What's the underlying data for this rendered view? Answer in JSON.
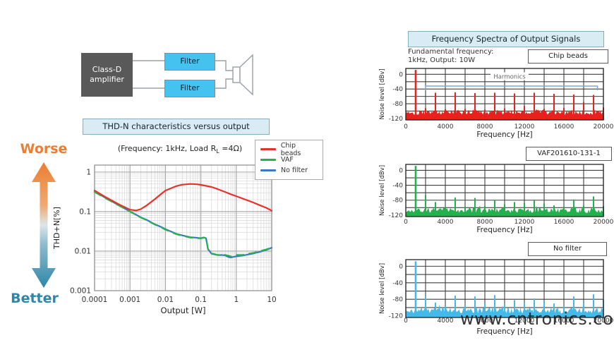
{
  "watermark": "www.cntronics.com",
  "diagram": {
    "amp_label": "Class-D\namplifier",
    "filter1_label": "Filter",
    "filter2_label": "Filter",
    "colors": {
      "amp_bg": "#595959",
      "filter_bg": "#45c2ee",
      "speaker_outline": "#9aa0a6"
    }
  },
  "worse_better": {
    "worse": "Worse",
    "better": "Better",
    "worse_color": "#ed7d31",
    "better_color": "#2e86a8"
  },
  "thdn": {
    "title": "THD-N characteristics versus output",
    "subtitle_pre": "(Frequency: 1kHz, Load R",
    "subtitle_sub": "L",
    "subtitle_post": " =4Ω)"
  },
  "spectra": {
    "title": "Frequency Spectra of Output Signals",
    "note_line1": "Fundamental frequency:",
    "note_line2": "1kHz, Output: 10W"
  },
  "chart_data": [
    {
      "type": "line",
      "title": "THD-N characteristics versus output",
      "xlabel": "Output [W]",
      "ylabel": "THD+N[%]",
      "xscale": "log",
      "yscale": "log",
      "xlim": [
        0.0001,
        10
      ],
      "ylim": [
        0.001,
        1.5
      ],
      "x_ticks": [
        "0.0001",
        "0.001",
        "0.01",
        "0.1",
        "1",
        "10"
      ],
      "y_ticks": [
        "1",
        "0.1",
        "0.01",
        "0.001"
      ],
      "grid": true,
      "legend_position": "top-right",
      "series": [
        {
          "name": "No filter",
          "color": "#3b78c3",
          "dash": "none",
          "points": [
            [
              0.0001,
              0.32
            ],
            [
              0.0002,
              0.225
            ],
            [
              0.0005,
              0.142
            ],
            [
              0.001,
              0.101
            ],
            [
              0.002,
              0.072
            ],
            [
              0.003,
              0.061
            ],
            [
              0.005,
              0.048
            ],
            [
              0.008,
              0.04
            ],
            [
              0.01,
              0.036
            ],
            [
              0.02,
              0.0275
            ],
            [
              0.03,
              0.025
            ],
            [
              0.05,
              0.0225
            ],
            [
              0.07,
              0.022
            ],
            [
              0.1,
              0.0213
            ],
            [
              0.12,
              0.0222
            ],
            [
              0.14,
              0.0212
            ],
            [
              0.16,
              0.0112
            ],
            [
              0.2,
              0.0086
            ],
            [
              0.3,
              0.0079
            ],
            [
              0.4,
              0.008
            ],
            [
              0.5,
              0.0077
            ],
            [
              0.6,
              0.0071
            ],
            [
              0.7,
              0.0069
            ],
            [
              0.8,
              0.0071
            ],
            [
              1,
              0.0074
            ],
            [
              1.5,
              0.0077
            ],
            [
              2,
              0.0081
            ],
            [
              3,
              0.0087
            ],
            [
              5,
              0.0098
            ],
            [
              7,
              0.0107
            ],
            [
              10,
              0.0122
            ]
          ]
        },
        {
          "name": "VAF",
          "color": "#27b24e",
          "dash": "10 8",
          "points": [
            [
              0.0001,
              0.315
            ],
            [
              0.0002,
              0.22
            ],
            [
              0.0005,
              0.14
            ],
            [
              0.001,
              0.1
            ],
            [
              0.002,
              0.071
            ],
            [
              0.003,
              0.06
            ],
            [
              0.005,
              0.047
            ],
            [
              0.008,
              0.039
            ],
            [
              0.01,
              0.035
            ],
            [
              0.02,
              0.027
            ],
            [
              0.03,
              0.0245
            ],
            [
              0.05,
              0.022
            ],
            [
              0.07,
              0.0215
            ],
            [
              0.1,
              0.021
            ],
            [
              0.12,
              0.022
            ],
            [
              0.14,
              0.0215
            ],
            [
              0.16,
              0.011
            ],
            [
              0.2,
              0.0088
            ],
            [
              0.3,
              0.008
            ],
            [
              0.4,
              0.0082
            ],
            [
              0.5,
              0.008
            ],
            [
              0.6,
              0.0077
            ],
            [
              0.7,
              0.0073
            ],
            [
              0.8,
              0.0076
            ],
            [
              1,
              0.008
            ],
            [
              1.5,
              0.008
            ],
            [
              2,
              0.0085
            ],
            [
              3,
              0.009
            ],
            [
              5,
              0.0102
            ],
            [
              7,
              0.011
            ],
            [
              10,
              0.0125
            ]
          ]
        },
        {
          "name": "Chip beads",
          "color": "#e8312b",
          "dash": "none",
          "points": [
            [
              0.0001,
              0.34
            ],
            [
              0.0002,
              0.235
            ],
            [
              0.0005,
              0.15
            ],
            [
              0.001,
              0.112
            ],
            [
              0.0015,
              0.107
            ],
            [
              0.002,
              0.115
            ],
            [
              0.003,
              0.145
            ],
            [
              0.005,
              0.205
            ],
            [
              0.008,
              0.29
            ],
            [
              0.01,
              0.34
            ],
            [
              0.02,
              0.44
            ],
            [
              0.03,
              0.48
            ],
            [
              0.05,
              0.5
            ],
            [
              0.08,
              0.49
            ],
            [
              0.1,
              0.475
            ],
            [
              0.2,
              0.42
            ],
            [
              0.3,
              0.37
            ],
            [
              0.5,
              0.31
            ],
            [
              0.7,
              0.275
            ],
            [
              1,
              0.245
            ],
            [
              2,
              0.195
            ],
            [
              3,
              0.17
            ],
            [
              5,
              0.14
            ],
            [
              7,
              0.125
            ],
            [
              10,
              0.105
            ]
          ]
        }
      ],
      "legend_order": [
        "Chip beads",
        "VAF",
        "No filter"
      ]
    },
    {
      "type": "bar",
      "title": "Chip beads",
      "xlabel": "Frequency [Hz]",
      "ylabel": "Noise level [dBv]",
      "xlim": [
        0,
        20000
      ],
      "ylim": [
        -120,
        0
      ],
      "x_tick_step": 4000,
      "grid_x_step": 2000,
      "grid_y_step": 20,
      "y_ticks": [
        0,
        -40,
        -80,
        -120
      ],
      "color": "#e8211d",
      "noise_floor_dbv": -103,
      "fundamental_hz": 1000,
      "harmonics": [
        [
          1000,
          12
        ],
        [
          2000,
          -92
        ],
        [
          3000,
          -50
        ],
        [
          4000,
          -95
        ],
        [
          5000,
          -49
        ],
        [
          6000,
          -94
        ],
        [
          7000,
          -51
        ],
        [
          8000,
          -96
        ],
        [
          9000,
          -50
        ],
        [
          10000,
          -93
        ],
        [
          11000,
          -52
        ],
        [
          12000,
          -86
        ],
        [
          13000,
          -50
        ],
        [
          14000,
          -94
        ],
        [
          15000,
          -53
        ],
        [
          16000,
          -91
        ],
        [
          17000,
          -55
        ],
        [
          18000,
          -76
        ],
        [
          19000,
          -56
        ],
        [
          20000,
          -90
        ]
      ],
      "annotation": {
        "text": "Harmonics",
        "bracket_from_hz": 2000,
        "bracket_to_hz": 19400,
        "bracket_level_dbv": -32,
        "color": "#7ba7d7",
        "text_color": "#6a6a6a"
      }
    },
    {
      "type": "bar",
      "title": "VAF201610-131-1",
      "xlabel": "Frequency [Hz]",
      "ylabel": "Noise level [dBv]",
      "xlim": [
        0,
        20000
      ],
      "ylim": [
        -120,
        0
      ],
      "x_tick_step": 4000,
      "grid_x_step": 2000,
      "grid_y_step": 20,
      "y_ticks": [
        0,
        -40,
        -80,
        -120
      ],
      "color": "#22b14c",
      "noise_floor_dbv": -107,
      "fundamental_hz": 1000,
      "harmonics": [
        [
          1000,
          12
        ],
        [
          2000,
          -66
        ],
        [
          3000,
          -85
        ],
        [
          4000,
          -99
        ],
        [
          5000,
          -73
        ],
        [
          6000,
          -97
        ],
        [
          7000,
          -74
        ],
        [
          8000,
          -95
        ],
        [
          9000,
          -79
        ],
        [
          10000,
          -91
        ],
        [
          11000,
          -85
        ],
        [
          12000,
          -87
        ],
        [
          13000,
          -81
        ],
        [
          14000,
          -89
        ],
        [
          15000,
          -94
        ],
        [
          16000,
          -97
        ],
        [
          17000,
          -78
        ],
        [
          18000,
          -94
        ],
        [
          19000,
          -70
        ],
        [
          20000,
          -96
        ]
      ]
    },
    {
      "type": "bar",
      "title": "No filter",
      "xlabel": "Frequency [Hz]",
      "ylabel": "Noise level [dBv]",
      "xlim": [
        0,
        20000
      ],
      "ylim": [
        -120,
        0
      ],
      "x_tick_step": 4000,
      "grid_x_step": 2000,
      "grid_y_step": 20,
      "y_ticks": [
        0,
        -40,
        -80,
        -120
      ],
      "color": "#45b9e8",
      "noise_floor_dbv": -107,
      "fundamental_hz": 1000,
      "harmonics": [
        [
          1000,
          12
        ],
        [
          2000,
          -72
        ],
        [
          3000,
          -88
        ],
        [
          4000,
          -96
        ],
        [
          5000,
          -71
        ],
        [
          6000,
          -95
        ],
        [
          7000,
          -73
        ],
        [
          8000,
          -91
        ],
        [
          9000,
          -70
        ],
        [
          10000,
          -90
        ],
        [
          11000,
          -82
        ],
        [
          12000,
          -88
        ],
        [
          13000,
          -78
        ],
        [
          14000,
          -84
        ],
        [
          15000,
          -90
        ],
        [
          16000,
          -96
        ],
        [
          17000,
          -73
        ],
        [
          18000,
          -88
        ],
        [
          19000,
          -68
        ],
        [
          20000,
          -81
        ]
      ]
    }
  ]
}
